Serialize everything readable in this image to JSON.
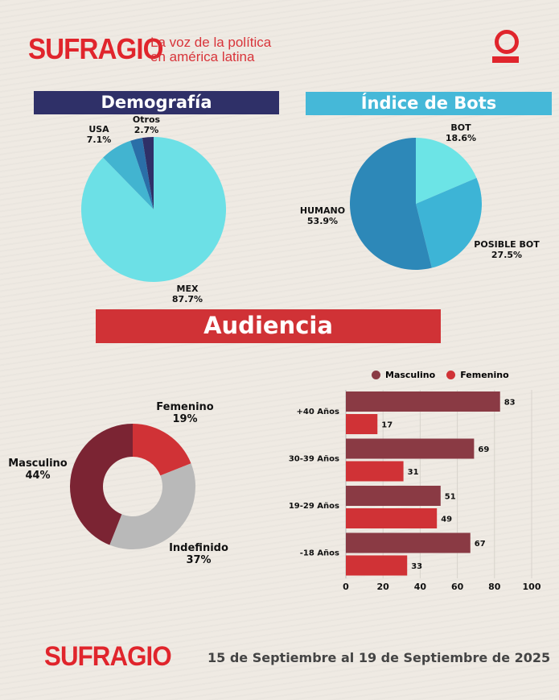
{
  "brand": {
    "logo": "SUFRAGIO",
    "tagline_line1": "La voz de la política",
    "tagline_line2": "en américa latina",
    "accent": "#e0252c"
  },
  "footer": {
    "logo": "SUFRAGIO",
    "date_range": "15 de Septiembre al 19 de Septiembre de 2025"
  },
  "chart_data": [
    {
      "type": "pie",
      "title": "Demografía",
      "banner_color": "#2f3068",
      "slices": [
        {
          "label": "MEX",
          "value": 87.7,
          "display": "87.7%",
          "color": "#6ce0e6"
        },
        {
          "label": "USA",
          "value": 7.1,
          "display": "7.1%",
          "color": "#42b4d0"
        },
        {
          "label": "Otros",
          "value": 2.7,
          "display": "2.7%",
          "color": "#2a6fa8"
        }
      ],
      "unlabeled_color": "#2f3068"
    },
    {
      "type": "pie",
      "title": "Índice de Bots",
      "banner_color": "#45b8d8",
      "slices": [
        {
          "label": "BOT",
          "value": 18.6,
          "display": "18.6%",
          "color": "#6ce4e6"
        },
        {
          "label": "POSIBLE BOT",
          "value": 27.5,
          "display": "27.5%",
          "color": "#3db4d6"
        },
        {
          "label": "HUMANO",
          "value": 53.9,
          "display": "53.9%",
          "color": "#2d88b8"
        }
      ]
    },
    {
      "type": "pie",
      "subtype": "donut",
      "title": "Audiencia",
      "banner_color": "#d03236",
      "slices": [
        {
          "label": "Femenino",
          "value": 19,
          "display": "19%",
          "color": "#d03236"
        },
        {
          "label": "Indefinido",
          "value": 37,
          "display": "37%",
          "color": "#b9b9b9"
        },
        {
          "label": "Masculino",
          "value": 44,
          "display": "44%",
          "color": "#7b2433"
        }
      ]
    },
    {
      "type": "bar",
      "orientation": "horizontal",
      "legend": "top",
      "categories": [
        "+40 Años",
        "30-39 Años",
        "19-29 Años",
        "-18 Años"
      ],
      "series": [
        {
          "name": "Masculino",
          "values": [
            83,
            69,
            51,
            67
          ],
          "color": "#8a3a44"
        },
        {
          "name": "Femenino",
          "values": [
            17,
            31,
            49,
            33
          ],
          "color": "#d03236"
        }
      ],
      "xlim": [
        0,
        100
      ],
      "xticks": [
        "0",
        "20",
        "40",
        "60",
        "80",
        "100"
      ],
      "grid": true
    }
  ]
}
